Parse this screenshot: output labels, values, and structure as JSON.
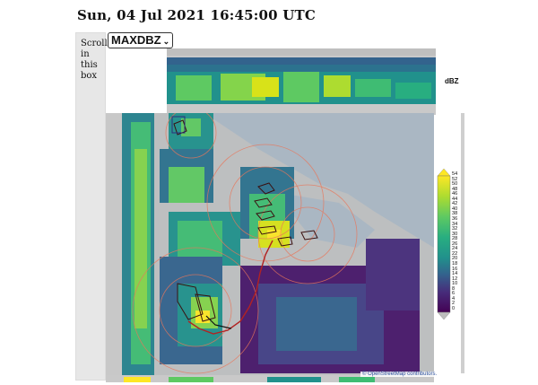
{
  "header": {
    "timestamp": "Sun, 04 Jul 2021 16:45:00 UTC"
  },
  "scroll_box": {
    "lines": [
      "Scroll",
      "in",
      "this",
      "box"
    ]
  },
  "variable_select": {
    "selected": "MAXDBZ",
    "options": [
      "MAXDBZ"
    ]
  },
  "colorbar": {
    "unit": "dBZ",
    "ticks": [
      "54",
      "52",
      "50",
      "48",
      "46",
      "44",
      "42",
      "40",
      "38",
      "36",
      "34",
      "32",
      "30",
      "28",
      "26",
      "24",
      "22",
      "20",
      "18",
      "16",
      "14",
      "12",
      "10",
      "8",
      "6",
      "4",
      "2",
      "0"
    ],
    "colors": [
      "#fde725",
      "#d8e219",
      "#addc30",
      "#84d44b",
      "#5ec962",
      "#3fbc73",
      "#28ae80",
      "#1fa088",
      "#21918c",
      "#26828e",
      "#2c728e",
      "#33638d",
      "#3b528b",
      "#424086",
      "#472d7b",
      "#48186a",
      "#440154"
    ]
  },
  "map": {
    "attribution": "© OpenStreetMap contributors."
  }
}
